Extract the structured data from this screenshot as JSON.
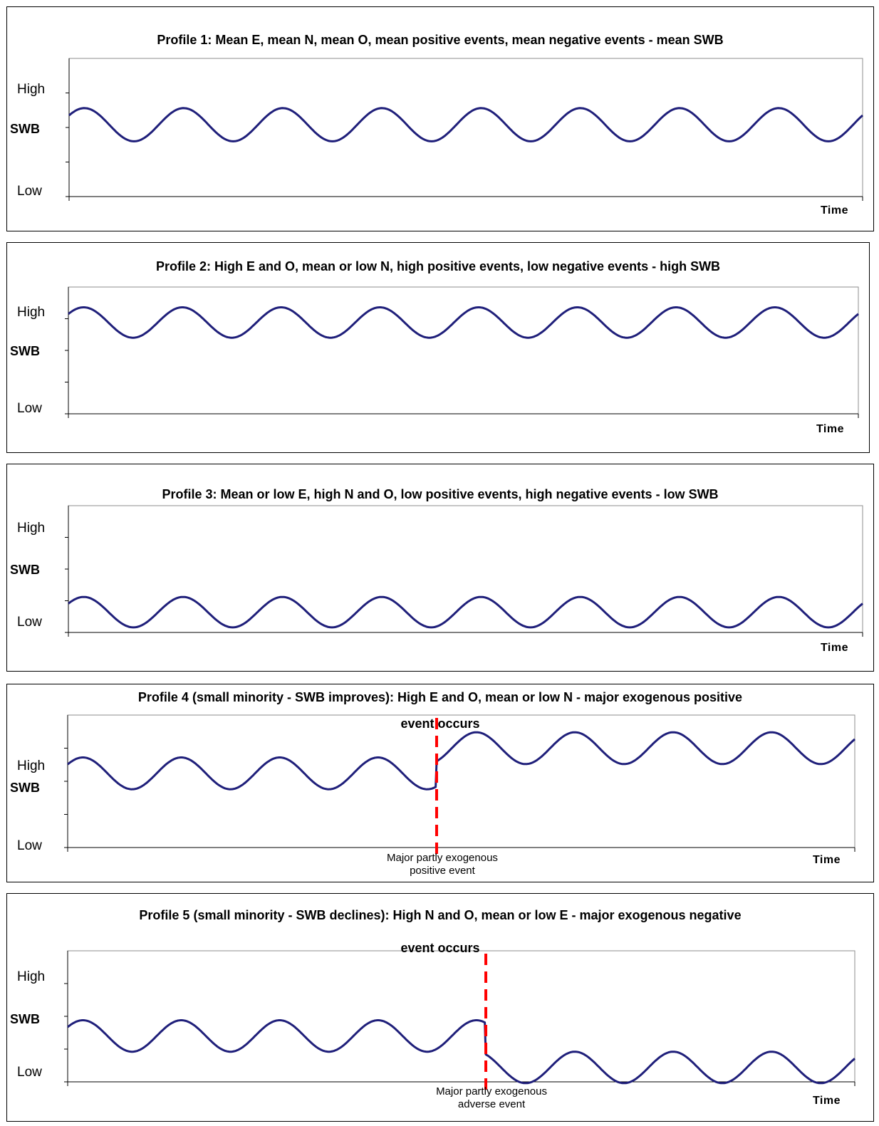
{
  "chart_data": [
    {
      "type": "line",
      "title": "Profile 1: Mean E, mean N, mean O, mean positive events, mean negative events - mean SWB",
      "ylabel": "SWB",
      "y_ticks": {
        "high": "High",
        "low": "Low"
      },
      "xlabel": "Time",
      "ylim": [
        0,
        10
      ],
      "x_range": [
        0,
        8
      ],
      "series": [
        {
          "color": "#1f1f7a",
          "pattern": "oscillating",
          "cycles": 8,
          "center": 5.2,
          "amplitude": 1.2,
          "phase": 0
        }
      ],
      "annotations": []
    },
    {
      "type": "line",
      "title": "Profile 2: High E and O, mean or low N, high positive events, low negative events - high SWB",
      "ylabel": "SWB",
      "y_ticks": {
        "high": "High",
        "low": "Low"
      },
      "xlabel": "Time",
      "ylim": [
        0,
        10
      ],
      "x_range": [
        0,
        8
      ],
      "series": [
        {
          "color": "#1f1f7a",
          "pattern": "oscillating",
          "cycles": 8,
          "center": 7.2,
          "amplitude": 1.2,
          "phase": 0
        }
      ],
      "annotations": []
    },
    {
      "type": "line",
      "title": "Profile 3: Mean or low E, high N and O, low positive events, high negative events - low SWB",
      "ylabel": "SWB",
      "y_ticks": {
        "high": "High",
        "low": "Low"
      },
      "xlabel": "Time",
      "ylim": [
        0,
        10
      ],
      "x_range": [
        0,
        8
      ],
      "series": [
        {
          "color": "#1f1f7a",
          "pattern": "oscillating",
          "cycles": 8,
          "center": 1.6,
          "amplitude": 1.2,
          "phase": 0
        }
      ],
      "annotations": []
    },
    {
      "type": "line",
      "title": "Profile 4 (small minority - SWB improves): High E and O, mean or low N - major exogenous positive",
      "title_line2": "event occurs",
      "ylabel": "SWB",
      "y_ticks": {
        "high": "High",
        "low": "Low"
      },
      "xlabel": "Time",
      "ylim": [
        0,
        10
      ],
      "x_range": [
        0,
        8
      ],
      "series": [
        {
          "color": "#1f1f7a",
          "pattern": "oscillating-with-step",
          "cycles": 8,
          "center_before": 5.6,
          "center_after": 7.5,
          "amplitude": 1.2,
          "phase": 0,
          "step_at": 3.75
        }
      ],
      "annotations": [
        {
          "type": "vline",
          "x": 3.75,
          "color": "#ff0000",
          "style": "dashed",
          "label_lines": [
            "Major partly exogenous",
            "positive event"
          ]
        }
      ]
    },
    {
      "type": "line",
      "title": "Profile 5 (small minority - SWB declines): High N and O, mean or low E - major exogenous negative",
      "title_line2": "event occurs",
      "ylabel": "SWB",
      "y_ticks": {
        "high": "High",
        "low": "Low"
      },
      "xlabel": "Time",
      "ylim": [
        0,
        10
      ],
      "x_range": [
        0,
        8
      ],
      "series": [
        {
          "color": "#1f1f7a",
          "pattern": "oscillating-with-step",
          "cycles": 8,
          "center_before": 3.5,
          "center_after": 1.1,
          "amplitude": 1.2,
          "phase": 0,
          "step_at": 4.25
        }
      ],
      "annotations": [
        {
          "type": "vline",
          "x": 4.25,
          "color": "#ff0000",
          "style": "dashed",
          "label_lines": [
            "Major partly exogenous",
            "adverse event"
          ]
        }
      ]
    }
  ]
}
